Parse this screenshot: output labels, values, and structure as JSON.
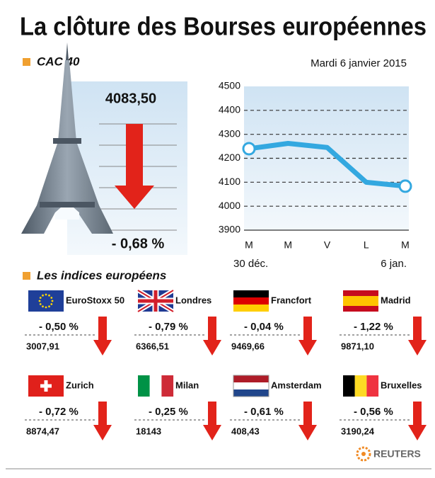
{
  "title": "La clôture des Bourses européennes",
  "cac": {
    "label": "CAC 40",
    "value": "4083,50",
    "change": "- 0,68 %"
  },
  "chart_data": {
    "type": "line",
    "subtitle": "Mardi 6 janvier 2015",
    "categories": [
      "M",
      "M",
      "V",
      "L",
      "M"
    ],
    "date_labels": [
      "30 déc.",
      null,
      null,
      null,
      "6 jan."
    ],
    "values": [
      4240,
      4262,
      4245,
      4100,
      4083.5
    ],
    "color": "#33a8e0",
    "ylim": [
      3900,
      4500
    ],
    "yticks": [
      3900,
      4000,
      4100,
      4200,
      4300,
      4400,
      4500
    ],
    "grid": true
  },
  "indices": {
    "title": "Les indices européens",
    "items": [
      {
        "name": "EuroStoxx 50",
        "change": "- 0,50 %",
        "value": "3007,91"
      },
      {
        "name": "Londres",
        "change": "- 0,79 %",
        "value": "6366,51"
      },
      {
        "name": "Francfort",
        "change": "- 0,04 %",
        "value": "9469,66"
      },
      {
        "name": "Madrid",
        "change": "- 1,22 %",
        "value": "9871,10"
      },
      {
        "name": "Zurich",
        "change": "- 0,72 %",
        "value": "8874,47"
      },
      {
        "name": "Milan",
        "change": "- 0,25 %",
        "value": "18143"
      },
      {
        "name": "Amsterdam",
        "change": "- 0,61 %",
        "value": "408,43"
      },
      {
        "name": "Bruxelles",
        "change": "- 0,56 %",
        "value": "3190,24"
      }
    ]
  },
  "source": "REUTERS"
}
